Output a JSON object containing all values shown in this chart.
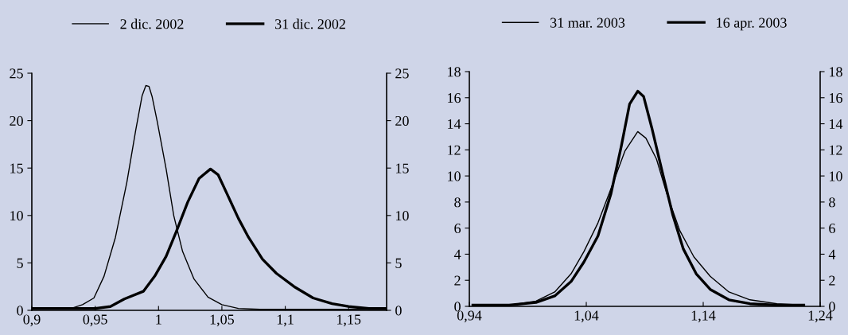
{
  "chart_data": [
    {
      "type": "line",
      "legend": "top",
      "grid": false,
      "marker": "none",
      "line_style": "solid",
      "xlim": [
        0.9,
        1.18
      ],
      "xticks": [
        {
          "value": 0.9,
          "label": "0,9"
        },
        {
          "value": 0.95,
          "label": "0,95"
        },
        {
          "value": 1,
          "label": "1"
        },
        {
          "value": 1.05,
          "label": "1,05"
        },
        {
          "value": 1.1,
          "label": "1,1"
        },
        {
          "value": 1.15,
          "label": "1,15"
        }
      ],
      "ylim": [
        0,
        25
      ],
      "yticks": [
        0,
        5,
        10,
        15,
        20,
        25
      ],
      "y2lim": [
        0,
        25
      ],
      "y2ticks": [
        0,
        5,
        10,
        15,
        20,
        25
      ],
      "series": [
        {
          "name": "2 dic. 2002",
          "color": "#000000",
          "x": [
            0.9,
            0.931,
            0.94,
            0.949,
            0.957,
            0.966,
            0.975,
            0.982,
            0.987,
            0.99,
            0.9925,
            0.995,
            0.999,
            1.006,
            1.012,
            1.019,
            1.028,
            1.039,
            1.05,
            1.063,
            1.08,
            1.18
          ],
          "values": [
            0.2,
            0.2,
            0.6,
            1.3,
            3.6,
            7.7,
            13.5,
            19,
            22.6,
            23.7,
            23.6,
            22.5,
            19.9,
            14.9,
            10,
            6.2,
            3.3,
            1.4,
            0.6,
            0.2,
            0.1,
            0.1
          ]
        },
        {
          "name": "31 dic. 2002",
          "color": "#000000",
          "x": [
            0.9,
            0.94,
            0.95,
            0.962,
            0.973,
            0.988,
            0.997,
            1.006,
            1.014,
            1.023,
            1.032,
            1.041,
            1.047,
            1.054,
            1.063,
            1.071,
            1.082,
            1.093,
            1.107,
            1.122,
            1.137,
            1.15,
            1.166,
            1.18
          ],
          "values": [
            0.2,
            0.2,
            0.2,
            0.4,
            1.2,
            2,
            3.6,
            5.7,
            8.3,
            11.4,
            13.9,
            14.9,
            14.3,
            12.3,
            9.7,
            7.7,
            5.4,
            3.9,
            2.5,
            1.3,
            0.7,
            0.4,
            0.2,
            0.2
          ]
        }
      ]
    },
    {
      "type": "line",
      "legend": "top",
      "grid": false,
      "marker": "none",
      "line_style": "solid",
      "xlim": [
        0.94,
        1.24
      ],
      "xticks": [
        {
          "value": 0.94,
          "label": "0,94"
        },
        {
          "value": 1.04,
          "label": "1,04"
        },
        {
          "value": 1.14,
          "label": "1,14"
        },
        {
          "value": 1.24,
          "label": "1,24"
        }
      ],
      "ylim": [
        0,
        18
      ],
      "yticks": [
        0,
        2,
        4,
        6,
        8,
        10,
        12,
        14,
        16,
        18
      ],
      "y2lim": [
        0,
        18
      ],
      "y2ticks": [
        0,
        2,
        4,
        6,
        8,
        10,
        12,
        14,
        16,
        18
      ],
      "series": [
        {
          "name": "31 mar. 2003",
          "color": "#000000",
          "x": [
            0.943,
            0.974,
            0.997,
            1.013,
            1.027,
            1.038,
            1.05,
            1.061,
            1.073,
            1.084,
            1.091,
            1.1,
            1.109,
            1.12,
            1.132,
            1.146,
            1.162,
            1.18,
            1.203,
            1.226
          ],
          "values": [
            0.1,
            0.1,
            0.4,
            1.1,
            2.5,
            4.2,
            6.4,
            9,
            11.9,
            13.4,
            12.9,
            11.3,
            8.6,
            5.8,
            3.8,
            2.3,
            1.1,
            0.5,
            0.2,
            0.1
          ]
        },
        {
          "name": "16 apr. 2003",
          "color": "#000000",
          "x": [
            0.943,
            0.974,
            0.997,
            1.013,
            1.027,
            1.038,
            1.05,
            1.061,
            1.07,
            1.077,
            1.084,
            1.089,
            1.096,
            1.105,
            1.114,
            1.123,
            1.134,
            1.146,
            1.162,
            1.18,
            1.203,
            1.226
          ],
          "values": [
            0.1,
            0.1,
            0.3,
            0.8,
            1.9,
            3.4,
            5.4,
            8.6,
            12.3,
            15.5,
            16.5,
            16.1,
            13.7,
            10.3,
            7,
            4.4,
            2.5,
            1.3,
            0.5,
            0.2,
            0.1,
            0.1
          ]
        }
      ]
    }
  ]
}
